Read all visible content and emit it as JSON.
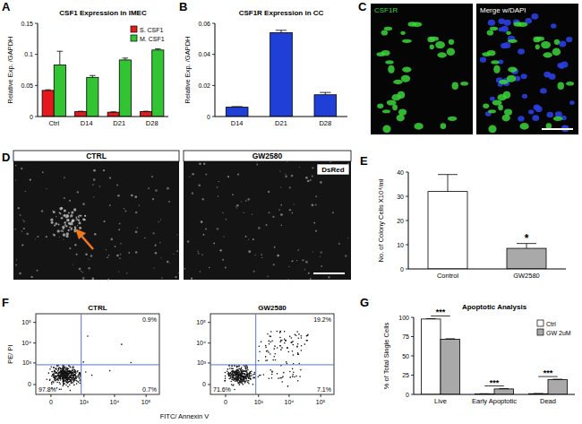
{
  "chart_data": [
    {
      "type": "bar",
      "panel_label": "A",
      "title": "CSF1 Expression in IMEC",
      "y_label": "Relative Exp. /GAPDH",
      "categories": [
        "Ctrl",
        "D14",
        "D21",
        "D28"
      ],
      "series": [
        {
          "name": "S. CSF1",
          "color": "#e3191c",
          "values": [
            0.042,
            0.008,
            0.007,
            0.008
          ],
          "errors": [
            0.001,
            0.0005,
            0.0005,
            0.0005
          ]
        },
        {
          "name": "M. CSF1",
          "color": "#33c433",
          "values": [
            0.083,
            0.063,
            0.091,
            0.107
          ],
          "errors": [
            0.022,
            0.003,
            0.003,
            0.002
          ]
        }
      ],
      "ylim": [
        0,
        0.15
      ],
      "yticks": [
        0,
        0.05,
        0.1,
        0.15
      ],
      "legend": "top-right"
    },
    {
      "type": "bar",
      "panel_label": "B",
      "title": "CSF1R Expression in CC",
      "y_label": "Relative Exp. /GAPDH",
      "categories": [
        "D14",
        "D21",
        "D28"
      ],
      "color": "#1f3fd6",
      "values": [
        0.006,
        0.054,
        0.014
      ],
      "errors": [
        0.0004,
        0.0015,
        0.0015
      ],
      "ylim": [
        0,
        0.06
      ],
      "yticks": [
        0,
        0.02,
        0.04,
        0.06
      ]
    },
    {
      "type": "bar",
      "panel_label": "E",
      "y_label": "No. of Colony Cells X10⁴/ml",
      "categories": [
        "Control",
        "GW2580"
      ],
      "colors": [
        "#ffffff",
        "#a9a9a9"
      ],
      "values": [
        32,
        8.5
      ],
      "errors": [
        7,
        2
      ],
      "ylim": [
        0,
        40
      ],
      "yticks": [
        0,
        10,
        20,
        30,
        40
      ],
      "annotations": [
        {
          "text": "*",
          "category": "GW2580"
        }
      ]
    },
    {
      "type": "flow_cytometry",
      "panel_label": "F",
      "x_label": "FITC/ Annexin V",
      "y_label": "PE/ PI",
      "log": true,
      "xlim": [
        -200,
        262144
      ],
      "ylim": [
        -200,
        262144
      ],
      "xticks": [
        0,
        {
          "value": 1000,
          "label": "10³"
        },
        {
          "value": 10000,
          "label": "10⁴"
        },
        {
          "value": 100000,
          "label": "10⁵"
        }
      ],
      "yticks": [
        0,
        {
          "value": 1000,
          "label": "10³"
        },
        {
          "value": 10000,
          "label": "10⁴"
        },
        {
          "value": 100000,
          "label": "10⁵"
        }
      ],
      "gates": {
        "x": 800,
        "y": 800
      },
      "plots": [
        {
          "title": "CTRL",
          "quadrants": {
            "upper_right": {
              "value": 0.9,
              "label": "0.9%"
            },
            "lower_left": {
              "value": 97.8,
              "label": "97.8%"
            },
            "lower_right": {
              "value": 0.7,
              "label": "0.7%"
            }
          }
        },
        {
          "title": "GW2580",
          "quadrants": {
            "upper_right": {
              "value": 19.2,
              "label": "19.2%"
            },
            "lower_left": {
              "value": 71.6,
              "label": "71.6%"
            },
            "lower_right": {
              "value": 7.1,
              "label": "7.1%"
            }
          }
        }
      ]
    },
    {
      "type": "bar",
      "panel_label": "G",
      "title": "Apoptotic Analysis",
      "y_label": "% of Total Single Cells",
      "categories": [
        "Live",
        "Early Apoptotic",
        "Dead"
      ],
      "series": [
        {
          "name": "Ctrl",
          "color": "#ffffff",
          "values": [
            97.8,
            0.7,
            0.9
          ],
          "errors": [
            0.5,
            0.2,
            0.2
          ]
        },
        {
          "name": "GW 2uM",
          "color": "#a9a9a9",
          "values": [
            71.6,
            7.1,
            19.2
          ],
          "errors": [
            0.6,
            0.4,
            0.5
          ]
        }
      ],
      "ylim": [
        0,
        100
      ],
      "yticks": [
        0,
        25,
        50,
        75,
        100
      ],
      "legend": "top-right",
      "annotations": [
        {
          "text": "***",
          "category": "Live"
        },
        {
          "text": "***",
          "category": "Early Apoptotic"
        },
        {
          "text": "***",
          "category": "Dead"
        }
      ]
    }
  ],
  "images": {
    "C": {
      "panel_label": "C",
      "labels": [
        "CSF1R",
        "Merge w/DAPI"
      ]
    },
    "D": {
      "panel_label": "D",
      "labels": [
        "CTRL",
        "GW2580"
      ],
      "channel": "DsRed"
    }
  }
}
